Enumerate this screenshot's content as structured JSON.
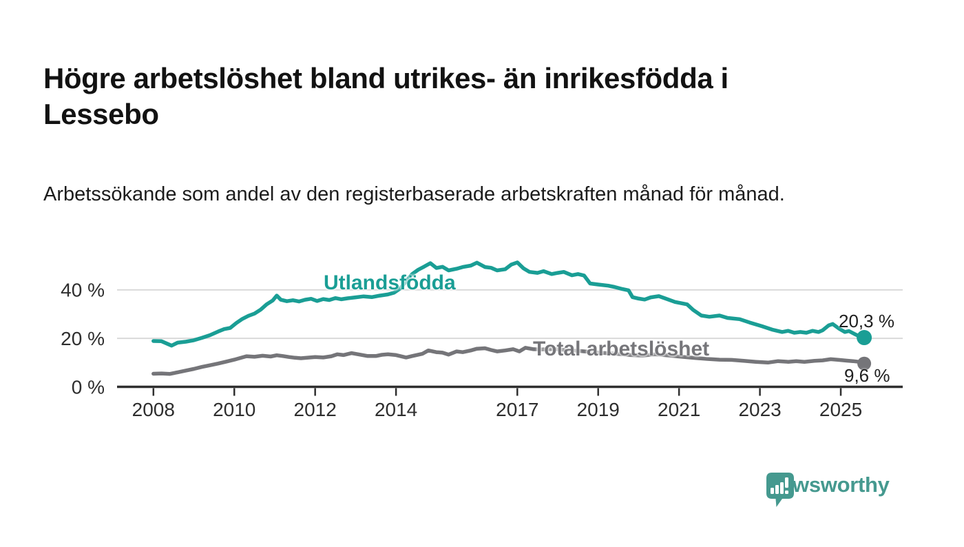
{
  "header": {
    "title": "Högre arbetslöshet bland utrikes- än inrikesfödda i Lessebo",
    "subtitle": "Arbetssökande som andel av den registerbaserade arbetskraften månad för månad."
  },
  "chart_data": {
    "type": "line",
    "title": "Högre arbetslöshet bland utrikes- än inrikesfödda i Lessebo",
    "subtitle": "Arbetssökande som andel av den registerbaserade arbetskraften månad för månad.",
    "unit": "percent",
    "grid": "horizontal",
    "legend_position": "inline-labels",
    "x_axis": {
      "tick_years": [
        2008,
        2010,
        2012,
        2014,
        2017,
        2019,
        2021,
        2023,
        2025
      ],
      "tick_labels": [
        "2008",
        "2010",
        "2012",
        "2014",
        "2017",
        "2019",
        "2021",
        "2023",
        "2025"
      ],
      "range": [
        2007.9,
        2026.6
      ]
    },
    "y_axis": {
      "tick_values": [
        0,
        20,
        40
      ],
      "tick_labels": [
        "0 %",
        "20 %",
        "40 %"
      ],
      "grid_values": [
        20,
        40
      ],
      "range": [
        0,
        56
      ]
    },
    "series": [
      {
        "label": "Utlandsfödda",
        "color": "#1a9e95",
        "end_value": 20.3,
        "end_label": "20,3 %",
        "points": [
          [
            2008.0,
            18.9
          ],
          [
            2008.2,
            18.8
          ],
          [
            2008.45,
            17.0
          ],
          [
            2008.6,
            18.2
          ],
          [
            2008.8,
            18.6
          ],
          [
            2009.0,
            19.2
          ],
          [
            2009.2,
            20.2
          ],
          [
            2009.4,
            21.3
          ],
          [
            2009.6,
            22.8
          ],
          [
            2009.75,
            23.8
          ],
          [
            2009.9,
            24.3
          ],
          [
            2010.05,
            26.3
          ],
          [
            2010.2,
            28.0
          ],
          [
            2010.35,
            29.3
          ],
          [
            2010.5,
            30.2
          ],
          [
            2010.65,
            31.8
          ],
          [
            2010.8,
            34.0
          ],
          [
            2010.95,
            35.6
          ],
          [
            2011.05,
            37.6
          ],
          [
            2011.15,
            35.9
          ],
          [
            2011.3,
            35.3
          ],
          [
            2011.45,
            35.7
          ],
          [
            2011.6,
            35.2
          ],
          [
            2011.75,
            35.9
          ],
          [
            2011.9,
            36.3
          ],
          [
            2012.05,
            35.4
          ],
          [
            2012.2,
            36.2
          ],
          [
            2012.35,
            35.8
          ],
          [
            2012.5,
            36.6
          ],
          [
            2012.65,
            36.1
          ],
          [
            2012.8,
            36.5
          ],
          [
            2013.0,
            36.9
          ],
          [
            2013.2,
            37.3
          ],
          [
            2013.4,
            37.0
          ],
          [
            2013.6,
            37.6
          ],
          [
            2013.8,
            38.1
          ],
          [
            2013.95,
            38.8
          ],
          [
            2014.1,
            40.5
          ],
          [
            2014.25,
            43.5
          ],
          [
            2014.4,
            46.5
          ],
          [
            2014.55,
            48.3
          ],
          [
            2014.7,
            49.6
          ],
          [
            2014.85,
            51.0
          ],
          [
            2015.0,
            49.0
          ],
          [
            2015.15,
            49.5
          ],
          [
            2015.3,
            48.0
          ],
          [
            2015.5,
            48.7
          ],
          [
            2015.65,
            49.4
          ],
          [
            2015.85,
            50.0
          ],
          [
            2016.0,
            51.2
          ],
          [
            2016.2,
            49.4
          ],
          [
            2016.35,
            49.1
          ],
          [
            2016.5,
            48.0
          ],
          [
            2016.7,
            48.5
          ],
          [
            2016.85,
            50.4
          ],
          [
            2017.0,
            51.3
          ],
          [
            2017.15,
            48.9
          ],
          [
            2017.3,
            47.4
          ],
          [
            2017.5,
            47.0
          ],
          [
            2017.65,
            47.7
          ],
          [
            2017.85,
            46.5
          ],
          [
            2018.0,
            47.0
          ],
          [
            2018.15,
            47.4
          ],
          [
            2018.35,
            46.0
          ],
          [
            2018.5,
            46.5
          ],
          [
            2018.65,
            45.9
          ],
          [
            2018.8,
            42.6
          ],
          [
            2019.0,
            42.2
          ],
          [
            2019.25,
            41.7
          ],
          [
            2019.4,
            41.2
          ],
          [
            2019.6,
            40.3
          ],
          [
            2019.75,
            39.8
          ],
          [
            2019.85,
            37.0
          ],
          [
            2020.0,
            36.4
          ],
          [
            2020.15,
            36.0
          ],
          [
            2020.3,
            36.9
          ],
          [
            2020.5,
            37.4
          ],
          [
            2020.65,
            36.5
          ],
          [
            2020.9,
            35.0
          ],
          [
            2021.05,
            34.5
          ],
          [
            2021.2,
            34.0
          ],
          [
            2021.35,
            31.7
          ],
          [
            2021.55,
            29.4
          ],
          [
            2021.75,
            28.9
          ],
          [
            2022.0,
            29.4
          ],
          [
            2022.2,
            28.4
          ],
          [
            2022.5,
            27.9
          ],
          [
            2022.75,
            26.5
          ],
          [
            2023.05,
            25.0
          ],
          [
            2023.3,
            23.6
          ],
          [
            2023.55,
            22.6
          ],
          [
            2023.7,
            23.1
          ],
          [
            2023.85,
            22.3
          ],
          [
            2024.0,
            22.6
          ],
          [
            2024.15,
            22.3
          ],
          [
            2024.3,
            23.1
          ],
          [
            2024.45,
            22.6
          ],
          [
            2024.55,
            23.3
          ],
          [
            2024.7,
            25.3
          ],
          [
            2024.8,
            25.9
          ],
          [
            2024.95,
            24.1
          ],
          [
            2025.1,
            22.6
          ],
          [
            2025.2,
            23.0
          ],
          [
            2025.35,
            21.7
          ],
          [
            2025.45,
            20.9
          ],
          [
            2025.58,
            20.3
          ]
        ]
      },
      {
        "label": "Total arbetslöshet",
        "color": "#757579",
        "end_value": 9.6,
        "end_label": "9,6 %",
        "points": [
          [
            2008.0,
            5.4
          ],
          [
            2008.2,
            5.5
          ],
          [
            2008.4,
            5.3
          ],
          [
            2008.6,
            6.0
          ],
          [
            2008.8,
            6.7
          ],
          [
            2009.0,
            7.4
          ],
          [
            2009.2,
            8.2
          ],
          [
            2009.4,
            8.9
          ],
          [
            2009.6,
            9.6
          ],
          [
            2009.8,
            10.4
          ],
          [
            2010.0,
            11.2
          ],
          [
            2010.15,
            11.9
          ],
          [
            2010.3,
            12.6
          ],
          [
            2010.5,
            12.4
          ],
          [
            2010.7,
            12.8
          ],
          [
            2010.9,
            12.5
          ],
          [
            2011.05,
            13.0
          ],
          [
            2011.2,
            12.7
          ],
          [
            2011.35,
            12.3
          ],
          [
            2011.5,
            12.0
          ],
          [
            2011.65,
            11.8
          ],
          [
            2011.8,
            12.0
          ],
          [
            2012.0,
            12.3
          ],
          [
            2012.2,
            12.1
          ],
          [
            2012.4,
            12.6
          ],
          [
            2012.55,
            13.4
          ],
          [
            2012.7,
            13.1
          ],
          [
            2012.9,
            13.9
          ],
          [
            2013.1,
            13.3
          ],
          [
            2013.3,
            12.7
          ],
          [
            2013.5,
            12.7
          ],
          [
            2013.65,
            13.2
          ],
          [
            2013.8,
            13.4
          ],
          [
            2014.0,
            13.1
          ],
          [
            2014.25,
            12.1
          ],
          [
            2014.4,
            12.7
          ],
          [
            2014.65,
            13.6
          ],
          [
            2014.8,
            15.0
          ],
          [
            2015.0,
            14.3
          ],
          [
            2015.15,
            14.1
          ],
          [
            2015.3,
            13.3
          ],
          [
            2015.5,
            14.6
          ],
          [
            2015.65,
            14.3
          ],
          [
            2015.85,
            15.0
          ],
          [
            2016.0,
            15.7
          ],
          [
            2016.2,
            15.9
          ],
          [
            2016.35,
            15.2
          ],
          [
            2016.5,
            14.6
          ],
          [
            2016.7,
            15.0
          ],
          [
            2016.9,
            15.5
          ],
          [
            2017.05,
            14.6
          ],
          [
            2017.2,
            16.1
          ],
          [
            2017.4,
            15.5
          ],
          [
            2017.6,
            15.4
          ],
          [
            2017.9,
            15.6
          ],
          [
            2018.2,
            15.2
          ],
          [
            2018.6,
            14.7
          ],
          [
            2019.0,
            14.1
          ],
          [
            2019.4,
            13.7
          ],
          [
            2019.8,
            13.1
          ],
          [
            2020.1,
            12.9
          ],
          [
            2020.4,
            13.4
          ],
          [
            2020.7,
            13.0
          ],
          [
            2021.0,
            12.5
          ],
          [
            2021.4,
            11.9
          ],
          [
            2021.7,
            11.5
          ],
          [
            2022.0,
            11.2
          ],
          [
            2022.3,
            11.1
          ],
          [
            2022.6,
            10.7
          ],
          [
            2022.9,
            10.3
          ],
          [
            2023.2,
            10.0
          ],
          [
            2023.45,
            10.6
          ],
          [
            2023.7,
            10.3
          ],
          [
            2023.9,
            10.6
          ],
          [
            2024.1,
            10.3
          ],
          [
            2024.35,
            10.7
          ],
          [
            2024.55,
            10.9
          ],
          [
            2024.75,
            11.4
          ],
          [
            2024.95,
            11.1
          ],
          [
            2025.15,
            10.8
          ],
          [
            2025.3,
            10.6
          ],
          [
            2025.45,
            10.3
          ],
          [
            2025.58,
            9.6
          ]
        ]
      }
    ]
  },
  "footer": {
    "brand": "Newsworthy",
    "brand_color": "#45998f"
  }
}
